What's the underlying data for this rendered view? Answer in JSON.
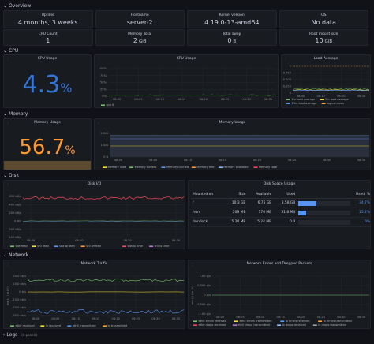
{
  "rows": {
    "overview": "Overview",
    "cpu": "CPU",
    "memory": "Memory",
    "disk": "Disk",
    "network": "Network",
    "logs": "Logs",
    "logs_sub": "(4 panels)"
  },
  "overview": {
    "stats": [
      {
        "label": "Uptime",
        "value": "4 months, 3 weeks"
      },
      {
        "label": "Hostname",
        "value": "server-2"
      },
      {
        "label": "Kernel version",
        "value": "4.19.0-13-amd64"
      },
      {
        "label": "OS",
        "value": "No data"
      },
      {
        "label": "CPU Count",
        "value": "1"
      },
      {
        "label": "Memory Total",
        "value": "2",
        "unit": "GiB"
      },
      {
        "label": "Total swap",
        "value": "0",
        "unit": "B"
      },
      {
        "label": "Root mount size",
        "value": "10",
        "unit": "GiB"
      }
    ]
  },
  "cpu": {
    "gauge_title": "CPU Usage",
    "gauge_value": "4.3",
    "gauge_unit": "%",
    "gauge_color": "#3274d9",
    "usage_title": "CPU Usage",
    "usage_yticks": [
      "100%",
      "75%",
      "50%",
      "25%",
      "0%"
    ],
    "usage_legend": "cpu 0",
    "load_title": "Load Average",
    "load_yticks": [
      "1",
      "0.750",
      "0.500",
      "0.250",
      "0"
    ],
    "load_legend": [
      "1m load average",
      "5m load average",
      "15m load average",
      "logical cores"
    ],
    "xticks": [
      "08:00",
      "08:05",
      "08:10",
      "08:15",
      "08:20",
      "08:25",
      "08:30",
      "08:35"
    ],
    "load_xticks": [
      "08:00",
      "08:10",
      "08:20",
      "08:30"
    ]
  },
  "memory": {
    "gauge_title": "Memory Usage",
    "gauge_value": "56.7",
    "gauge_unit": "%",
    "gauge_color": "#ff9830",
    "usage_title": "Memory Usage",
    "yticks": [
      "2 GiB",
      "1 GiB",
      "0 B"
    ],
    "xticks": [
      "08:00",
      "08:05",
      "08:10",
      "08:15",
      "08:20",
      "08:25",
      "08:30",
      "08:35"
    ],
    "legend": [
      "Memory used",
      "Memory buffers",
      "Memory cached",
      "Memory free",
      "Memory available",
      "Memory total"
    ]
  },
  "disk": {
    "io_title": "Disk I/O",
    "io_yticks": [
      "600 kB/s",
      "400 kB/s",
      "200 kB/s",
      "0 B/s",
      "200 kB/s",
      "400 kB/s"
    ],
    "io_xticks": [
      "08:00",
      "08:10",
      "08:20",
      "08:30"
    ],
    "io_legend": [
      "sda read",
      "sr0 read",
      "sda written",
      "sr0 written",
      "sda io time",
      "sr0 io time"
    ],
    "space_title": "Disk Space Usage",
    "columns": [
      "Mounted on",
      "Size",
      "Available",
      "Used",
      "Used, %"
    ],
    "rows": [
      {
        "mount": "/",
        "size": "10.3 GB",
        "available": "6.75 GB",
        "used": "3.58 GB",
        "pct_label": "34.7%",
        "pct": 34.7
      },
      {
        "mount": "/run",
        "size": "209 MB",
        "available": "176 MB",
        "used": "31.8 MB",
        "pct_label": "15.2%",
        "pct": 15.2
      },
      {
        "mount": "/run/lock",
        "size": "5.24 MB",
        "available": "5.24 MB",
        "used": "0 B",
        "pct_label": "0%",
        "pct": 0
      }
    ]
  },
  "network": {
    "traffic_title": "Network Traffic",
    "traffic_ylabel": "out (-) / in (+)",
    "traffic_yticks": [
      "20.0 kb/s",
      "10.0 kb/s",
      "0 b/s",
      "-10.0 kb/s",
      "-20.0 kb/s",
      "-30.0 kb/s"
    ],
    "traffic_xticks": [
      "08:00",
      "08:05",
      "08:10",
      "08:15",
      "08:20",
      "08:25",
      "08:30",
      "08:35"
    ],
    "traffic_legend": [
      "eth0 received",
      "lo received",
      "eth0 transmitted",
      "lo transmitted"
    ],
    "errors_title": "Network Errors and Dropped Packets",
    "errors_ylabel": "out (-) / in (+)",
    "errors_yticks": [
      "1.00 p/s",
      "0.500 p/s",
      "0 p/s",
      "-0.500 p/s",
      "-1.00 p/s"
    ],
    "errors_xticks": [
      "08:00",
      "08:05",
      "08:10",
      "08:15",
      "08:20",
      "08:25",
      "08:30",
      "08:35"
    ],
    "errors_legend": [
      "eth0 errors received",
      "eth0 errors transmitted",
      "lo errors received",
      "lo errors transmitted",
      "eth0 drops received",
      "eth0 drops transmitted",
      "lo drops received",
      "lo drops transmitted"
    ]
  },
  "colors": {
    "green": "#73bf69",
    "yellow": "#fade2a",
    "blue": "#5794f2",
    "orange": "#ff9830",
    "red": "#f2495c",
    "purple": "#b877d9",
    "cyan": "#8ab8ff"
  }
}
